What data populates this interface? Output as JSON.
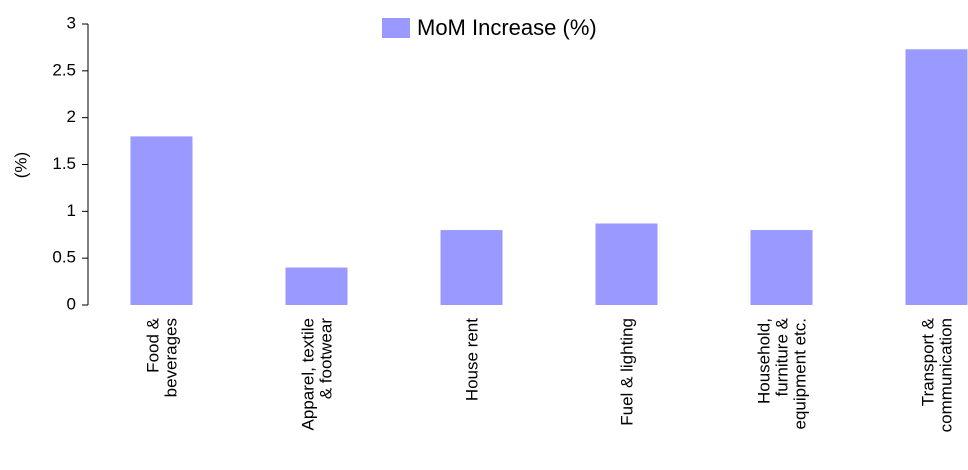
{
  "chart_data": {
    "type": "bar",
    "y_label": "(%)",
    "categories": [
      "Food &\nbeverages",
      "Apparel, textile\n& footwear",
      "House rent",
      "Fuel & lighting",
      "Household,\nfurniture &\nequipment etc.",
      "Transport &\ncommunication"
    ],
    "series": [
      {
        "name": "MoM Increase (%)",
        "color": "#9999ff",
        "values": [
          1.8,
          0.4,
          0.8,
          0.87,
          0.8,
          2.73
        ]
      }
    ],
    "ylim": [
      0,
      3
    ],
    "yticks": [
      0,
      0.5,
      1,
      1.5,
      2,
      2.5,
      3
    ],
    "grid": false,
    "legend": "top"
  }
}
